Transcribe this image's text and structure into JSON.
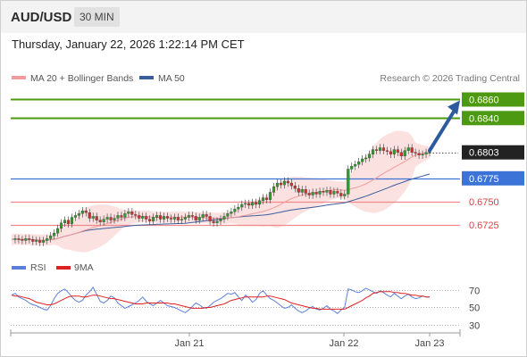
{
  "header": {
    "symbol": "AUD/USD",
    "timeframe": "30 MIN"
  },
  "datetime": "Thursday, January 22, 2026 1:22:14 PM CET",
  "legend": {
    "ma20_label": "MA 20 + Bollinger Bands",
    "ma50_label": "MA 50",
    "copyright": "Research © 2026 Trading Central"
  },
  "rsi_legend": {
    "rsi_label": "RSI",
    "ma_label": "9MA"
  },
  "colors": {
    "resistance": "#4d9a12",
    "support": "#f08a8a",
    "pivot": "#3b74d6",
    "ma50": "#3a5d9c",
    "ma20": "#f29b9b",
    "bands": "#fcdcdc",
    "rsi": "#5b7fd8",
    "rsi_ma": "#e02020",
    "arrow": "#2d5a9e",
    "current": "#222222",
    "candle_up": "#2e9c2e",
    "candle_down": "#d03030"
  },
  "chart_data": [
    {
      "type": "line",
      "title": "AUD/USD",
      "x_ticks": [
        "Jan 21",
        "Jan 22",
        "Jan 23"
      ],
      "ylim": [
        0.6695,
        0.6872
      ],
      "price_levels": [
        {
          "value": 0.686,
          "label": "0.6860",
          "kind": "resistance"
        },
        {
          "value": 0.684,
          "label": "0.6840",
          "kind": "resistance"
        },
        {
          "value": 0.6803,
          "label": "0.6803",
          "kind": "current"
        },
        {
          "value": 0.6775,
          "label": "0.6775",
          "kind": "pivot"
        },
        {
          "value": 0.675,
          "label": "0.6750",
          "kind": "support"
        },
        {
          "value": 0.6725,
          "label": "0.6725",
          "kind": "support"
        }
      ],
      "close_series": [
        0.6709,
        0.671,
        0.6709,
        0.6708,
        0.671,
        0.6709,
        0.6707,
        0.6708,
        0.6706,
        0.6708,
        0.671,
        0.6713,
        0.6716,
        0.6721,
        0.6727,
        0.673,
        0.6726,
        0.6733,
        0.6735,
        0.6737,
        0.674,
        0.6738,
        0.6732,
        0.6734,
        0.673,
        0.6728,
        0.6731,
        0.6733,
        0.673,
        0.6732,
        0.6735,
        0.6733,
        0.6737,
        0.6739,
        0.6736,
        0.6735,
        0.6732,
        0.6734,
        0.6731,
        0.6729,
        0.6733,
        0.6735,
        0.6731,
        0.6734,
        0.6732,
        0.6731,
        0.6733,
        0.673,
        0.6731,
        0.6733,
        0.6735,
        0.6734,
        0.673,
        0.6733,
        0.6736,
        0.6734,
        0.6729,
        0.6727,
        0.6729,
        0.6731,
        0.6734,
        0.6737,
        0.6739,
        0.6742,
        0.6744,
        0.6747,
        0.6748,
        0.6746,
        0.6749,
        0.6747,
        0.6751,
        0.6754,
        0.6752,
        0.676,
        0.6766,
        0.677,
        0.6768,
        0.6772,
        0.677,
        0.6767,
        0.6764,
        0.676,
        0.6763,
        0.6759,
        0.6757,
        0.676,
        0.6758,
        0.6761,
        0.676,
        0.6762,
        0.6758,
        0.6761,
        0.6759,
        0.6756,
        0.6758,
        0.6785,
        0.6788,
        0.679,
        0.6793,
        0.6796,
        0.6797,
        0.6801,
        0.6806,
        0.6805,
        0.6808,
        0.6805,
        0.6804,
        0.6801,
        0.6806,
        0.6803,
        0.6799,
        0.6805,
        0.6808,
        0.6803,
        0.6802,
        0.68,
        0.6801,
        0.6803,
        0.6803
      ],
      "forecast_arrow": {
        "from": 0.6803,
        "to": 0.686
      }
    },
    {
      "type": "line",
      "title": "RSI",
      "ylim": [
        25,
        80
      ],
      "y_ticks": [
        70,
        50,
        30
      ],
      "series": [
        {
          "name": "RSI",
          "values": [
            64,
            66,
            62,
            60,
            58,
            55,
            53,
            52,
            50,
            48,
            47,
            52,
            60,
            66,
            69,
            71,
            67,
            62,
            58,
            56,
            58,
            64,
            68,
            73,
            65,
            57,
            55,
            58,
            63,
            61,
            55,
            52,
            49,
            51,
            53,
            55,
            58,
            62,
            57,
            54,
            52,
            55,
            58,
            55,
            52,
            51,
            50,
            48,
            46,
            44,
            47,
            51,
            55,
            53,
            50,
            49,
            52,
            56,
            58,
            60,
            63,
            66,
            65,
            67,
            62,
            58,
            64,
            61,
            56,
            59,
            66,
            69,
            64,
            60,
            58,
            55,
            52,
            49,
            50,
            53,
            49,
            46,
            44,
            46,
            49,
            51,
            48,
            47,
            49,
            52,
            48,
            46,
            43,
            47,
            50,
            71,
            70,
            68,
            67,
            69,
            72,
            70,
            68,
            66,
            69,
            67,
            64,
            62,
            66,
            63,
            60,
            63,
            65,
            62,
            60,
            61,
            63,
            62,
            62
          ]
        },
        {
          "name": "9MA",
          "values": [
            64,
            63,
            63,
            62,
            61,
            60,
            58,
            56,
            55,
            54,
            53,
            53,
            54,
            56,
            58,
            60,
            62,
            63,
            63,
            63,
            62,
            62,
            63,
            64,
            64,
            63,
            62,
            61,
            60,
            60,
            59,
            58,
            57,
            56,
            55,
            54,
            54,
            54,
            55,
            55,
            55,
            55,
            55,
            55,
            55,
            54,
            54,
            53,
            52,
            51,
            50,
            49,
            49,
            49,
            49,
            50,
            50,
            51,
            52,
            53,
            54,
            56,
            58,
            59,
            60,
            61,
            62,
            62,
            62,
            62,
            62,
            62,
            63,
            63,
            62,
            61,
            60,
            59,
            57,
            55,
            54,
            53,
            52,
            51,
            50,
            49,
            49,
            48,
            48,
            48,
            48,
            48,
            48,
            48,
            48,
            50,
            52,
            54,
            56,
            58,
            61,
            63,
            66,
            67,
            68,
            68,
            68,
            68,
            67,
            67,
            66,
            66,
            65,
            64,
            64,
            63,
            63,
            62,
            62
          ]
        }
      ]
    }
  ]
}
